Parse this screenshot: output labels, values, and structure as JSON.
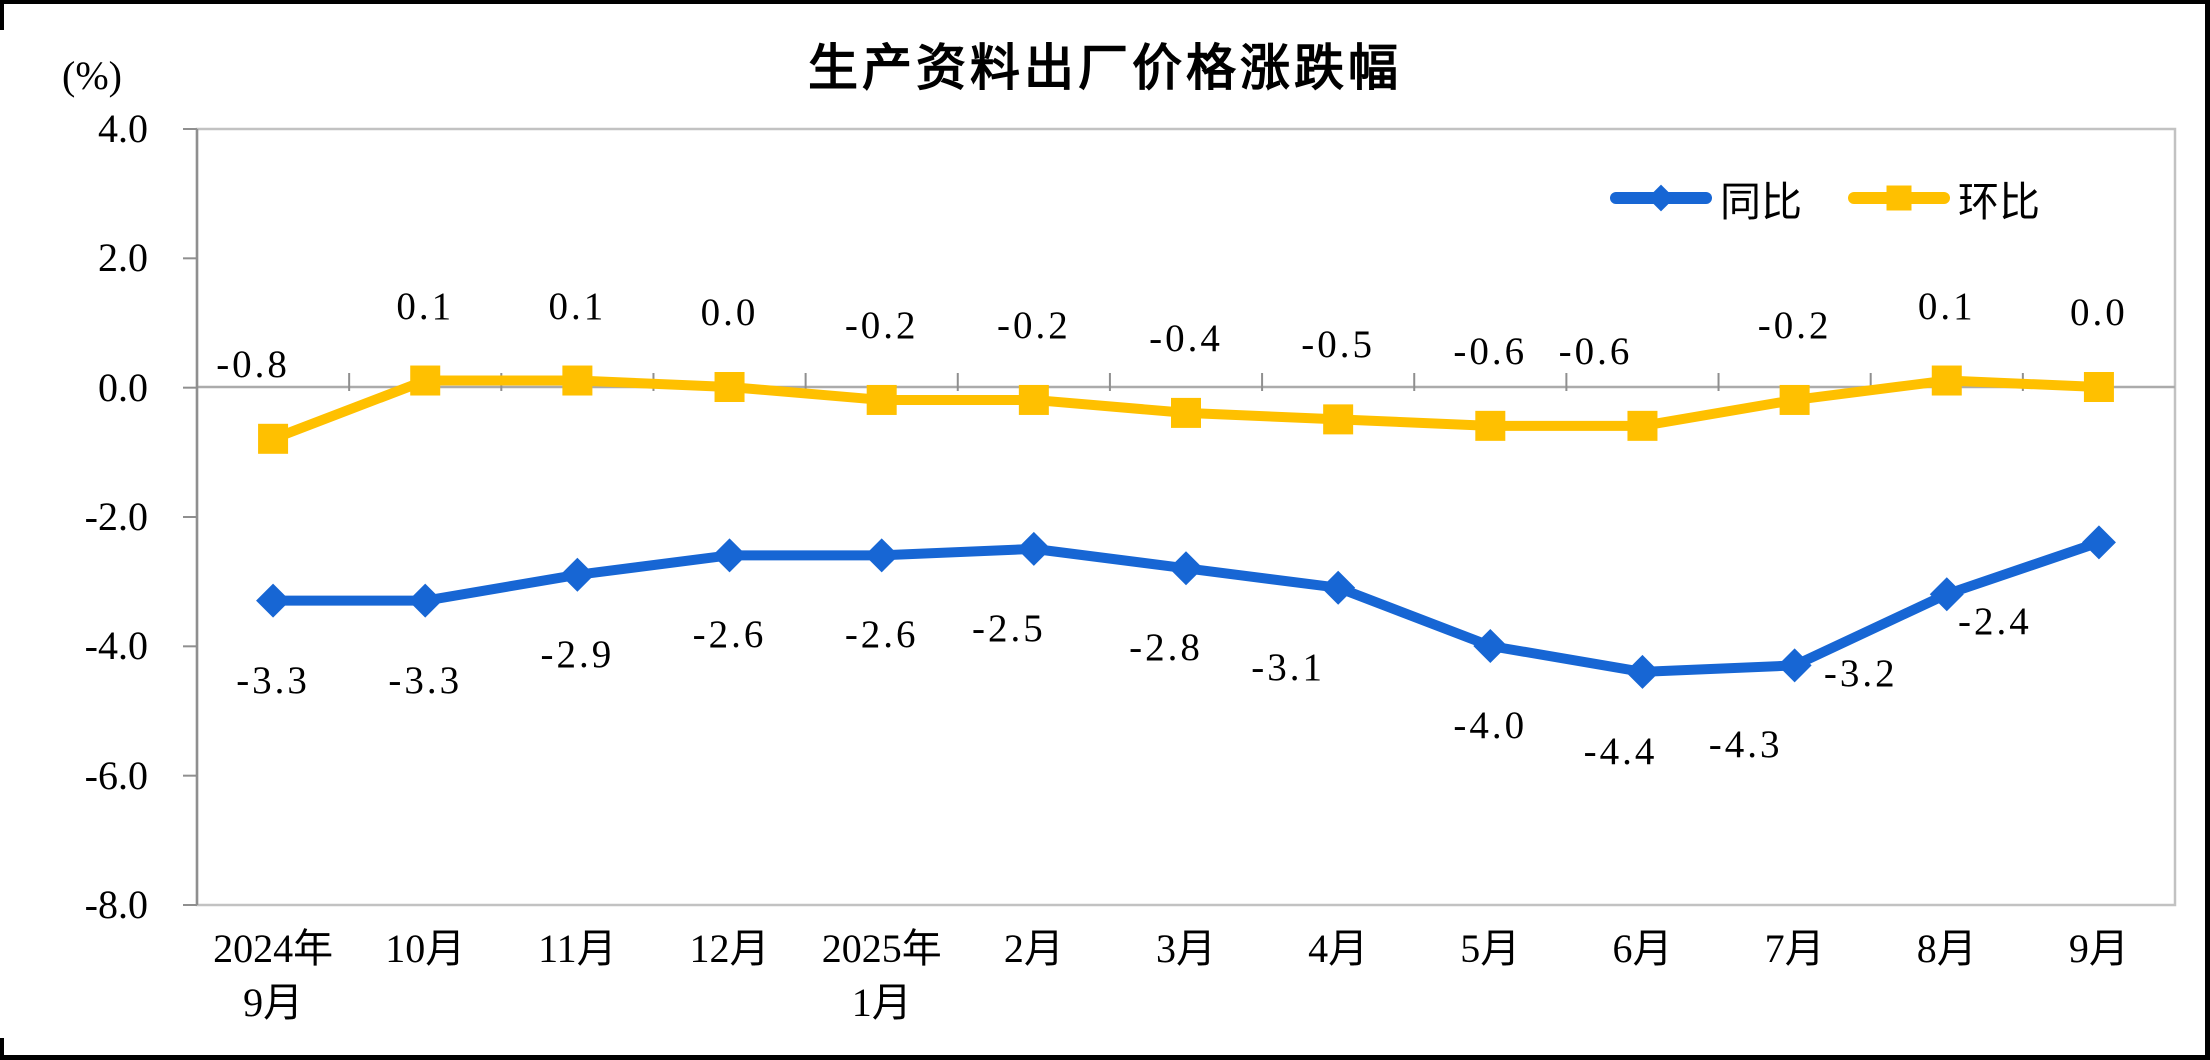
{
  "window": {
    "background": "#FFFFFF",
    "border_color": "#000000"
  },
  "chart": {
    "title": "生产资料出厂价格涨跌幅",
    "unit_label": "(%)",
    "legend": {
      "position": "top-right-inside",
      "items": [
        {
          "label": "同比",
          "color": "#1766D4",
          "marker": "diamond"
        },
        {
          "label": "环比",
          "color": "#FFC000",
          "marker": "square"
        }
      ]
    }
  },
  "chart_data": {
    "type": "line",
    "title": "生产资料出厂价格涨跌幅",
    "ylabel": "(%)",
    "xlabel": "",
    "categories": [
      "2024年\n9月",
      "10月",
      "11月",
      "12月",
      "2025年\n1月",
      "2月",
      "3月",
      "4月",
      "5月",
      "6月",
      "7月",
      "8月",
      "9月"
    ],
    "series": [
      {
        "name": "同比",
        "color": "#1766D4",
        "marker": "diamond",
        "label_side": "below",
        "values": [
          -3.3,
          -3.3,
          -2.9,
          -2.6,
          -2.6,
          -2.5,
          -2.8,
          -3.1,
          -4.0,
          -4.4,
          -4.3,
          -3.2,
          -2.4
        ]
      },
      {
        "name": "环比",
        "color": "#FFC000",
        "marker": "square",
        "label_side": "above",
        "values": [
          -0.8,
          0.1,
          0.1,
          0.0,
          -0.2,
          -0.2,
          -0.4,
          -0.5,
          -0.6,
          -0.6,
          -0.2,
          0.1,
          0.0
        ]
      }
    ],
    "ylim": [
      -8.0,
      4.0
    ],
    "ytick_step": 2.0,
    "yticks": [
      "4.0",
      "2.0",
      "0.0",
      "-2.0",
      "-4.0",
      "-6.0",
      "-8.0"
    ],
    "grid": "zero-axis-line-only",
    "data_labels": "one-decimal",
    "legend_position": "top-right-inside",
    "axis_colors": {
      "frame": "#C2C2C2",
      "zero_line": "#ABABAB",
      "axis_and_ticks": "#8F8F8F"
    }
  }
}
